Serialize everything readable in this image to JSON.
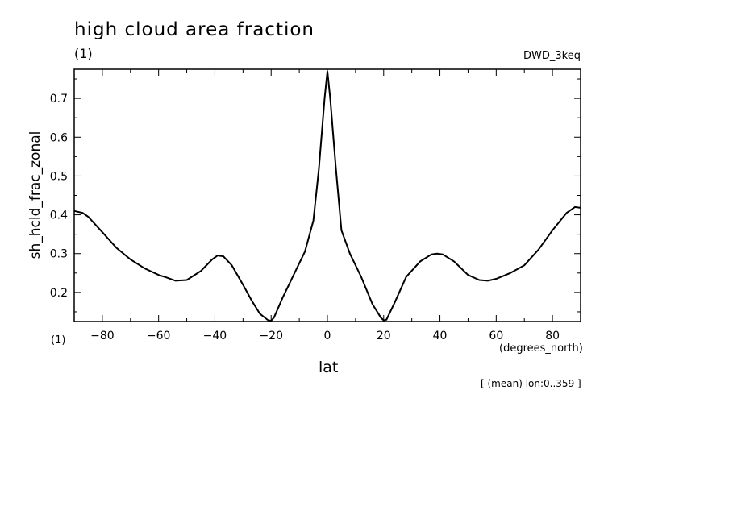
{
  "title": "high cloud area fraction",
  "units_label": "(1)",
  "dataset": "DWD_3keq",
  "units_label_bottom": "(1)",
  "x_units": "(degrees_north)",
  "xlabel": "lat",
  "ylabel": "sh_hcld_frac_zonal",
  "average_note": "[ (mean) lon:0..359 ]",
  "chart_data": {
    "type": "line",
    "title": "high cloud area fraction",
    "xlabel": "lat",
    "ylabel": "sh_hcld_frac_zonal",
    "xlim": [
      -90,
      90
    ],
    "ylim": [
      0.125,
      0.775
    ],
    "xticks": [
      -80,
      -60,
      -40,
      -20,
      0,
      20,
      40,
      60,
      80
    ],
    "yticks": [
      0.2,
      0.3,
      0.4,
      0.5,
      0.6,
      0.7
    ],
    "grid": false,
    "series": [
      {
        "x": [
          -90,
          -87,
          -85,
          -80,
          -75,
          -70,
          -65,
          -60,
          -57,
          -54,
          -50,
          -45,
          -41,
          -39,
          -37,
          -34,
          -30,
          -27,
          -24,
          -21,
          -20,
          -19,
          -16,
          -12,
          -8,
          -5,
          -3,
          -1,
          0,
          1,
          3,
          5,
          8,
          12,
          16,
          19,
          20,
          21,
          24,
          28,
          33,
          37,
          39,
          41,
          45,
          50,
          54,
          57,
          60,
          65,
          70,
          75,
          80,
          85,
          88,
          90
        ],
        "values": [
          0.41,
          0.405,
          0.395,
          0.355,
          0.315,
          0.285,
          0.262,
          0.245,
          0.238,
          0.23,
          0.232,
          0.255,
          0.285,
          0.295,
          0.293,
          0.27,
          0.22,
          0.18,
          0.145,
          0.128,
          0.127,
          0.135,
          0.185,
          0.245,
          0.305,
          0.385,
          0.52,
          0.7,
          0.77,
          0.7,
          0.52,
          0.36,
          0.3,
          0.24,
          0.17,
          0.135,
          0.128,
          0.13,
          0.175,
          0.24,
          0.28,
          0.298,
          0.3,
          0.298,
          0.28,
          0.245,
          0.232,
          0.23,
          0.235,
          0.25,
          0.27,
          0.31,
          0.36,
          0.405,
          0.42,
          0.418
        ]
      }
    ]
  }
}
